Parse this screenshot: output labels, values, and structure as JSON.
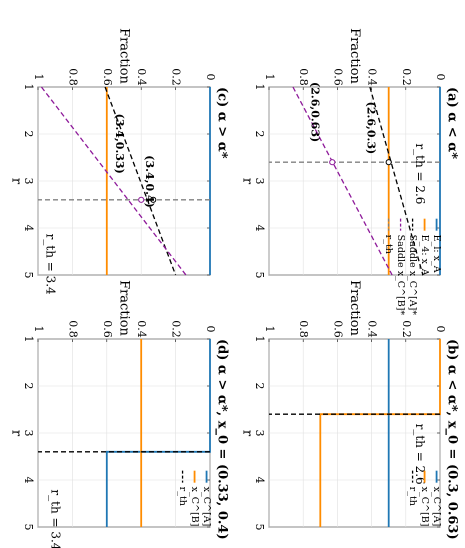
{
  "figure": {
    "axis_font": "serif"
  },
  "colors": {
    "blue": "#1f77b4",
    "orange": "#ff8c00",
    "purple": "#8e1a9a",
    "black": "#000000",
    "gray": "#808080",
    "grid": "#e0e0e0"
  },
  "chart_data": [
    {
      "id": "a",
      "type": "line",
      "title": "(a) α < α*",
      "xlabel": "Fraction",
      "ylabel": "r",
      "xlim": [
        0,
        1
      ],
      "ylim": [
        1,
        5
      ],
      "xticks": [
        "0",
        "0.2",
        "0.4",
        "0.6",
        "0.8",
        "1"
      ],
      "yticks": [
        "1",
        "2",
        "3",
        "4",
        "5"
      ],
      "grid": true,
      "series": [
        {
          "name": "E_l: x_A",
          "style": "solid",
          "color": "blue",
          "points": [
            [
              0,
              1
            ],
            [
              0,
              5
            ]
          ]
        },
        {
          "name": "E_4: x_A",
          "style": "solid",
          "color": "orange",
          "points": [
            [
              0.3,
              1
            ],
            [
              0.3,
              5
            ]
          ]
        },
        {
          "name": "Saddle x_C^[A]*",
          "style": "dashed",
          "color": "black",
          "points": [
            [
              0.41,
              1
            ],
            [
              0.1,
              5
            ]
          ]
        },
        {
          "name": "Saddle x_C^[B]*",
          "style": "dashed",
          "color": "purple",
          "points": [
            [
              0.86,
              1
            ],
            [
              0.28,
              5
            ]
          ]
        },
        {
          "name": "r_th",
          "style": "dashed",
          "color": "gray",
          "points": [
            [
              0,
              2.6
            ],
            [
              1,
              2.6
            ]
          ]
        }
      ],
      "points": [
        {
          "label": "(2.6,0.3)",
          "x": 0.3,
          "y": 2.6,
          "color": "black"
        },
        {
          "label": "(2.6,0.63)",
          "x": 0.63,
          "y": 2.6,
          "color": "purple"
        }
      ],
      "annotations": [
        {
          "text": "r_th = 2.6"
        }
      ]
    },
    {
      "id": "b",
      "type": "line",
      "title": "(b) α < α*, x_0 = (0.3, 0.63)",
      "xlabel": "Fraction",
      "ylabel": "r",
      "xlim": [
        0,
        1
      ],
      "ylim": [
        1,
        5
      ],
      "xticks": [
        "0",
        "0.2",
        "0.4",
        "0.6",
        "0.8",
        "1"
      ],
      "yticks": [
        "1",
        "2",
        "3",
        "4",
        "5"
      ],
      "grid": true,
      "series": [
        {
          "name": "x_C^[A]",
          "style": "solid",
          "color": "blue",
          "points": [
            [
              0.3,
              1
            ],
            [
              0.3,
              5
            ]
          ]
        },
        {
          "name": "x_C^[B]",
          "style": "solid",
          "color": "orange",
          "points": [
            [
              0.0,
              1
            ],
            [
              0.0,
              2.6
            ],
            [
              0.7,
              2.6
            ],
            [
              0.7,
              5
            ]
          ]
        },
        {
          "name": "r_th",
          "style": "dashed",
          "color": "black",
          "points": [
            [
              0,
              2.6
            ],
            [
              1,
              2.6
            ]
          ]
        }
      ],
      "annotations": [
        {
          "text": "r_th = 2.6"
        }
      ]
    },
    {
      "id": "c",
      "type": "line",
      "title": "(c) α > α*",
      "xlabel": "Fraction",
      "ylabel": "r",
      "xlim": [
        0,
        1
      ],
      "ylim": [
        1,
        5
      ],
      "xticks": [
        "0",
        "0.2",
        "0.4",
        "0.6",
        "0.8",
        "1"
      ],
      "yticks": [
        "1",
        "2",
        "3",
        "4",
        "5"
      ],
      "grid": true,
      "series": [
        {
          "name": "",
          "style": "solid",
          "color": "blue",
          "points": [
            [
              0,
              1
            ],
            [
              0,
              5
            ]
          ]
        },
        {
          "name": "",
          "style": "solid",
          "color": "orange",
          "points": [
            [
              0.6,
              1
            ],
            [
              0.6,
              5
            ]
          ]
        },
        {
          "name": "",
          "style": "dashed",
          "color": "black",
          "points": [
            [
              0.61,
              1
            ],
            [
              0.2,
              5
            ]
          ]
        },
        {
          "name": "",
          "style": "dashed",
          "color": "purple",
          "points": [
            [
              0.98,
              1
            ],
            [
              0.14,
              5
            ]
          ]
        },
        {
          "name": "",
          "style": "dashed",
          "color": "gray",
          "points": [
            [
              0,
              3.4
            ],
            [
              1,
              3.4
            ]
          ]
        }
      ],
      "points": [
        {
          "label": "(3.4,0.33)",
          "x": 0.33,
          "y": 3.4,
          "color": "black"
        },
        {
          "label": "(3.4,0.4)",
          "x": 0.4,
          "y": 3.4,
          "color": "purple"
        }
      ],
      "annotations": [
        {
          "text": "r_th = 3.4"
        }
      ]
    },
    {
      "id": "d",
      "type": "line",
      "title": "(d) α > α*, x_0 = (0.33, 0.4)",
      "xlabel": "Fraction",
      "ylabel": "r",
      "xlim": [
        0,
        1
      ],
      "ylim": [
        1,
        5
      ],
      "xticks": [
        "0",
        "0.2",
        "0.4",
        "0.6",
        "0.8",
        "1"
      ],
      "yticks": [
        "1",
        "2",
        "3",
        "4",
        "5"
      ],
      "grid": true,
      "series": [
        {
          "name": "x_C^[A]",
          "style": "solid",
          "color": "blue",
          "points": [
            [
              0.0,
              1
            ],
            [
              0.0,
              3.4
            ],
            [
              0.6,
              3.4
            ],
            [
              0.6,
              5
            ]
          ]
        },
        {
          "name": "x_C^[B]",
          "style": "solid",
          "color": "orange",
          "points": [
            [
              0.4,
              1
            ],
            [
              0.4,
              5
            ]
          ]
        },
        {
          "name": "r_th",
          "style": "dashed",
          "color": "black",
          "points": [
            [
              0,
              3.4
            ],
            [
              1,
              3.4
            ]
          ]
        }
      ],
      "annotations": [
        {
          "text": "r_th = 3.4"
        }
      ]
    }
  ]
}
